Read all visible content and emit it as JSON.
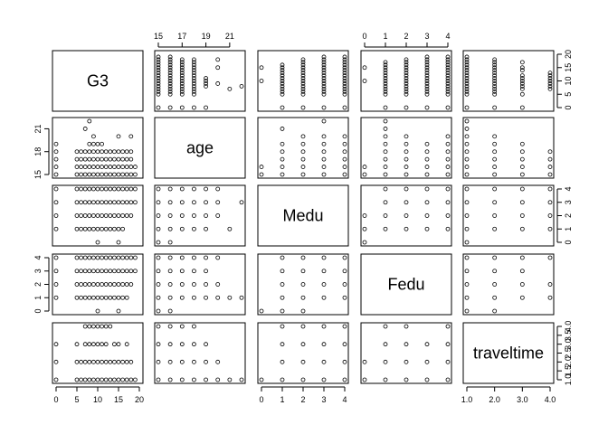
{
  "chart_data": {
    "type": "scatter-matrix",
    "variables": [
      {
        "name": "G3",
        "range": [
          0,
          20
        ],
        "ticks": [
          0,
          5,
          10,
          15,
          20
        ]
      },
      {
        "name": "age",
        "range": [
          15,
          22
        ],
        "ticks": [
          15,
          17,
          19,
          21
        ],
        "left_ticks": [
          15,
          18,
          21
        ]
      },
      {
        "name": "Medu",
        "range": [
          0,
          4
        ],
        "ticks": [
          0,
          1,
          2,
          3,
          4
        ]
      },
      {
        "name": "Fedu",
        "range": [
          0,
          4
        ],
        "ticks": [
          0,
          1,
          2,
          3,
          4
        ]
      },
      {
        "name": "traveltime",
        "range": [
          1,
          4
        ],
        "ticks": [
          1.0,
          2.0,
          3.0,
          4.0
        ],
        "tick_labels": [
          "1.0",
          "2.0",
          "3.0",
          "4.0"
        ],
        "right_ticks": [
          1.0,
          1.5,
          2.0,
          2.5,
          3.0,
          3.5,
          4.0
        ],
        "right_tick_labels": [
          "1.0",
          "1.5",
          "2.0",
          "2.5",
          "3.0",
          "3.5",
          "4.0"
        ]
      }
    ],
    "observations": {
      "G3_age": {
        "15": [
          0,
          5,
          6,
          7,
          8,
          9,
          10,
          11,
          12,
          13,
          14,
          15,
          16,
          17,
          18,
          19
        ],
        "16": [
          0,
          5,
          6,
          7,
          8,
          9,
          10,
          11,
          12,
          13,
          14,
          15,
          16,
          17,
          18,
          19
        ],
        "17": [
          0,
          5,
          6,
          7,
          8,
          9,
          10,
          11,
          12,
          13,
          14,
          15,
          16,
          17,
          18
        ],
        "18": [
          0,
          5,
          6,
          7,
          8,
          9,
          10,
          11,
          12,
          13,
          14,
          15,
          16,
          17,
          18
        ],
        "19": [
          0,
          8,
          9,
          10,
          11
        ],
        "20": [
          9,
          15,
          18
        ],
        "21": [
          7
        ],
        "22": [
          8
        ]
      },
      "G3_Medu": {
        "0": [
          10,
          15
        ],
        "1": [
          0,
          5,
          6,
          7,
          8,
          9,
          10,
          11,
          12,
          13,
          14,
          15,
          16
        ],
        "2": [
          0,
          5,
          6,
          7,
          8,
          9,
          10,
          11,
          12,
          13,
          14,
          15,
          16,
          17,
          18
        ],
        "3": [
          0,
          5,
          6,
          7,
          8,
          9,
          10,
          11,
          12,
          13,
          14,
          15,
          16,
          17,
          18,
          19
        ],
        "4": [
          0,
          5,
          6,
          7,
          8,
          9,
          10,
          11,
          12,
          13,
          14,
          15,
          16,
          17,
          18,
          19
        ]
      },
      "G3_Fedu": {
        "0": [
          10,
          15
        ],
        "1": [
          0,
          5,
          6,
          7,
          8,
          9,
          10,
          11,
          12,
          13,
          14,
          15,
          16,
          17
        ],
        "2": [
          0,
          5,
          6,
          7,
          8,
          9,
          10,
          11,
          12,
          13,
          14,
          15,
          16,
          17,
          18
        ],
        "3": [
          0,
          5,
          6,
          7,
          8,
          9,
          10,
          11,
          12,
          13,
          14,
          15,
          16,
          17,
          18,
          19
        ],
        "4": [
          0,
          5,
          6,
          7,
          8,
          9,
          10,
          11,
          12,
          13,
          14,
          15,
          16,
          17,
          18,
          19
        ]
      },
      "G3_traveltime": {
        "1": [
          0,
          5,
          6,
          7,
          8,
          9,
          10,
          11,
          12,
          13,
          14,
          15,
          16,
          17,
          18,
          19
        ],
        "2": [
          0,
          5,
          6,
          7,
          8,
          9,
          10,
          11,
          12,
          13,
          14,
          15,
          16,
          17,
          18
        ],
        "3": [
          0,
          5,
          7,
          8,
          9,
          10,
          11,
          12,
          14,
          15,
          17
        ],
        "4": [
          7,
          8,
          9,
          10,
          11,
          12,
          13
        ]
      },
      "age_Medu": {
        "0": [
          15,
          16
        ],
        "1": [
          15,
          16,
          17,
          18,
          19,
          21
        ],
        "2": [
          15,
          16,
          17,
          18,
          19,
          20
        ],
        "3": [
          15,
          16,
          17,
          18,
          19,
          20,
          22
        ],
        "4": [
          15,
          16,
          17,
          18,
          19,
          20
        ]
      },
      "age_Fedu": {
        "0": [
          15,
          16
        ],
        "1": [
          15,
          16,
          17,
          18,
          19,
          20,
          21,
          22
        ],
        "2": [
          15,
          16,
          17,
          18,
          19,
          20
        ],
        "3": [
          15,
          16,
          17,
          18,
          19
        ],
        "4": [
          15,
          16,
          17,
          18,
          19,
          20
        ]
      },
      "age_traveltime": {
        "1": [
          15,
          16,
          17,
          18,
          19,
          20,
          21,
          22
        ],
        "2": [
          15,
          16,
          17,
          18,
          19,
          20
        ],
        "3": [
          15,
          16,
          17,
          18,
          19
        ],
        "4": [
          15,
          16,
          17,
          18
        ]
      },
      "Medu_Fedu": {
        "0": [
          0,
          1,
          2
        ],
        "1": [
          1,
          2,
          3,
          4
        ],
        "2": [
          1,
          2,
          3,
          4
        ],
        "3": [
          1,
          2,
          3,
          4
        ],
        "4": [
          1,
          2,
          3,
          4
        ]
      },
      "Medu_traveltime": {
        "1": [
          0,
          1,
          2,
          3,
          4
        ],
        "2": [
          1,
          2,
          3,
          4
        ],
        "3": [
          1,
          2,
          3,
          4
        ],
        "4": [
          1,
          2,
          3,
          4
        ]
      },
      "Fedu_traveltime": {
        "1": [
          0,
          1,
          2,
          3,
          4
        ],
        "2": [
          0,
          1,
          2,
          3,
          4
        ],
        "3": [
          1,
          2,
          3,
          4
        ],
        "4": [
          1,
          2,
          4
        ]
      }
    },
    "grid": false,
    "legend": "none"
  }
}
